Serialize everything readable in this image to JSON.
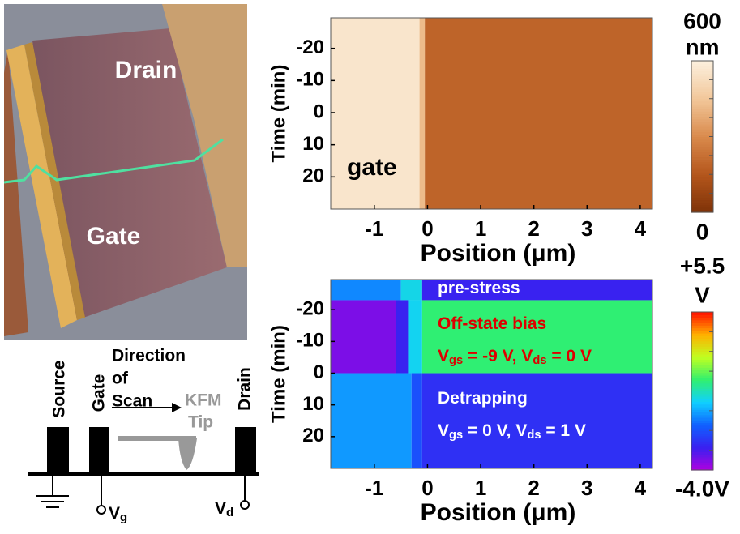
{
  "chart_data": [
    {
      "type": "heatmap",
      "xlabel": "Position (μm)",
      "ylabel": "Time (min)",
      "xlim": [
        -1.82,
        4.23
      ],
      "xticks": [
        -1,
        0,
        1,
        2,
        3,
        4
      ],
      "ylim": [
        -29.5,
        30
      ],
      "yticks": [
        -20,
        -10,
        0,
        10,
        20
      ],
      "colorscale": [
        "#7e3208",
        "#b4561c",
        "#d98a4c",
        "#f2c79a",
        "#fcf0de"
      ],
      "clim": [
        0,
        600
      ],
      "cticks": [
        0,
        600
      ],
      "clabel": "nm",
      "regions": [
        {
          "x": [
            -1.82,
            -0.15
          ],
          "y": [
            -29.5,
            30
          ],
          "value": 560
        },
        {
          "x": [
            -0.15,
            -0.05
          ],
          "y": [
            -29.5,
            30
          ],
          "value": 420
        },
        {
          "x": [
            -0.05,
            4.23
          ],
          "y": [
            -29.5,
            30
          ],
          "value": 190
        }
      ],
      "annotations": [
        {
          "parts": [
            "gate"
          ]
        }
      ]
    },
    {
      "type": "heatmap",
      "xlabel": "Position (μm)",
      "ylabel": "Time (min)",
      "xlim": [
        -1.82,
        4.23
      ],
      "xticks": [
        -1,
        0,
        1,
        2,
        3,
        4
      ],
      "ylim": [
        -29.5,
        30
      ],
      "yticks": [
        -20,
        -10,
        0,
        10,
        20
      ],
      "colorscale": [
        "#b000e0",
        "#3a20f0",
        "#1060ff",
        "#10d0ff",
        "#30f070",
        "#c0ff20",
        "#ffb000",
        "#ff1000"
      ],
      "clim": [
        -4.0,
        5.5
      ],
      "cticks": [
        {
          "value": -4.0,
          "label": "-4.0V"
        },
        {
          "value": 5.5,
          "label": "+5.5"
        }
      ],
      "clabel": "V",
      "regions": [
        {
          "x": [
            -1.82,
            -0.5
          ],
          "y": [
            -29.5,
            -23
          ],
          "value": -0.8
        },
        {
          "x": [
            -0.5,
            -0.1
          ],
          "y": [
            -29.5,
            -23
          ],
          "value": 0.3
        },
        {
          "x": [
            -0.1,
            4.23
          ],
          "y": [
            -29.5,
            -23
          ],
          "value": -2.6
        },
        {
          "x": [
            -1.82,
            -0.6
          ],
          "y": [
            -23,
            0
          ],
          "value": -3.4
        },
        {
          "x": [
            -0.6,
            -0.35
          ],
          "y": [
            -23,
            0
          ],
          "value": -2.6
        },
        {
          "x": [
            -0.35,
            -0.1
          ],
          "y": [
            -23,
            0
          ],
          "value": 0.2
        },
        {
          "x": [
            -0.1,
            4.23
          ],
          "y": [
            -23,
            0
          ],
          "value": 1.4
        },
        {
          "x": [
            -1.82,
            -0.3
          ],
          "y": [
            0,
            30
          ],
          "value": -0.6
        },
        {
          "x": [
            -0.3,
            -0.1
          ],
          "y": [
            0,
            30
          ],
          "value": -1.6
        },
        {
          "x": [
            -0.1,
            4.23
          ],
          "y": [
            0,
            30
          ],
          "value": -2.3
        }
      ],
      "annotations": [
        {
          "parts": [
            "pre-stress"
          ]
        },
        {
          "parts": [
            "Off-state bias"
          ]
        },
        {
          "parts": [
            "V",
            "gs",
            " = -9 V, V",
            "ds",
            " = 0 V"
          ]
        },
        {
          "parts": [
            "Detrapping"
          ]
        },
        {
          "parts": [
            "V",
            "gs",
            " = 0 V, V",
            "ds",
            " = 1 V"
          ]
        }
      ]
    }
  ],
  "afm_image": {
    "drain_label": "Drain",
    "gate_label": "Gate"
  },
  "schematic": {
    "source": "Source",
    "gate": "Gate",
    "drain": "Drain",
    "direction": [
      "Direction",
      "of",
      "Scan"
    ],
    "tip": [
      "KFM",
      "Tip"
    ],
    "vg": [
      "V",
      "g"
    ],
    "vd": [
      "V",
      "d"
    ]
  }
}
